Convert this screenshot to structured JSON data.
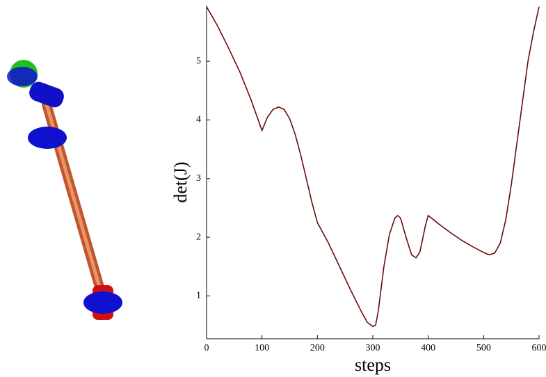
{
  "chart_data": {
    "type": "line",
    "xlabel": "steps",
    "ylabel": "det(J)",
    "x": [
      0,
      20,
      40,
      60,
      80,
      100,
      110,
      120,
      130,
      140,
      150,
      160,
      170,
      180,
      190,
      200,
      220,
      240,
      260,
      280,
      290,
      300,
      305,
      310,
      320,
      330,
      340,
      345,
      350,
      360,
      370,
      378,
      385,
      395,
      400,
      420,
      440,
      460,
      480,
      500,
      510,
      520,
      530,
      540,
      550,
      560,
      570,
      580,
      590,
      600
    ],
    "series": [
      {
        "color": "#6b0a0a",
        "values": [
          5.93,
          5.6,
          5.22,
          4.82,
          4.35,
          3.82,
          4.05,
          4.18,
          4.22,
          4.18,
          4.02,
          3.75,
          3.4,
          3.0,
          2.6,
          2.25,
          1.9,
          1.5,
          1.1,
          0.72,
          0.55,
          0.48,
          0.5,
          0.75,
          1.5,
          2.05,
          2.33,
          2.37,
          2.33,
          2.0,
          1.7,
          1.65,
          1.75,
          2.2,
          2.37,
          2.22,
          2.08,
          1.95,
          1.84,
          1.74,
          1.7,
          1.73,
          1.9,
          2.3,
          2.9,
          3.6,
          4.3,
          5.0,
          5.5,
          5.93
        ]
      }
    ],
    "xlim": [
      0,
      600
    ],
    "xticks": [
      0,
      100,
      200,
      300,
      400,
      500,
      600
    ],
    "ylim": [
      0.27,
      5.95
    ],
    "yticks": [
      1,
      2,
      3,
      4,
      5
    ]
  }
}
